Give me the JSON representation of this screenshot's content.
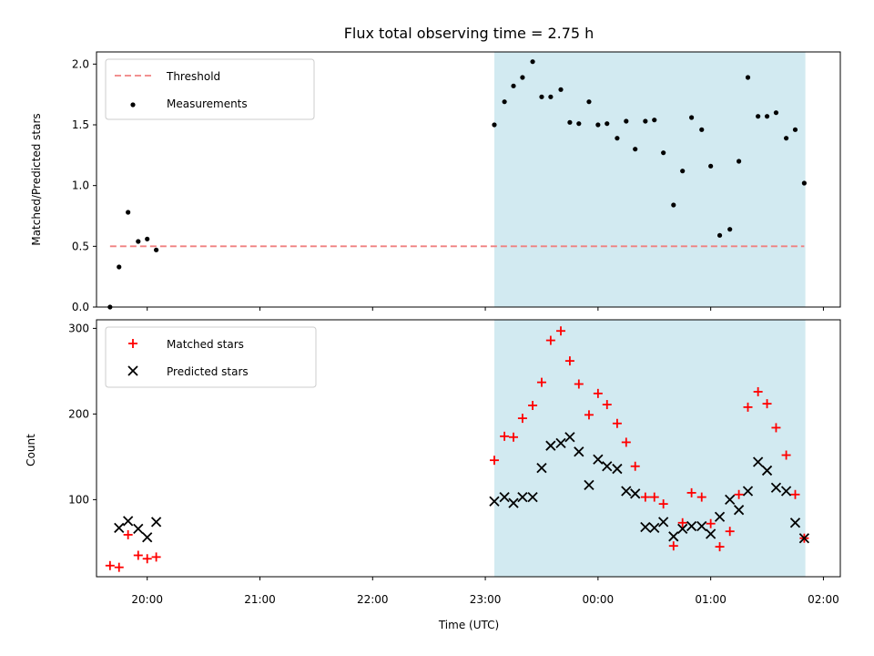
{
  "chart_data": [
    {
      "type": "scatter",
      "title": "Flux total observing time = 2.75 h",
      "xlabel": "",
      "ylabel": "Matched/Predicted stars",
      "ylim": [
        0,
        2.1
      ],
      "yticks": [
        "0.0",
        "0.5",
        "1.0",
        "1.5",
        "2.0"
      ],
      "xlim_hours": [
        19.55,
        26.15
      ],
      "xticks": [
        "20:00",
        "21:00",
        "22:00",
        "23:00",
        "00:00",
        "01:00",
        "02:00"
      ],
      "shaded_span_hours": [
        23.08,
        25.84
      ],
      "shade_color": "#add8e6",
      "legend_position": "upper left",
      "threshold": {
        "name": "Threshold",
        "value": 0.5,
        "x_range_hours": [
          19.67,
          25.83
        ],
        "color": "#f08080"
      },
      "series": [
        {
          "name": "Measurements",
          "color": "#000000",
          "x_hours": [
            19.67,
            19.75,
            19.83,
            19.92,
            20.0,
            20.08,
            23.08,
            23.17,
            23.25,
            23.33,
            23.42,
            23.5,
            23.58,
            23.67,
            23.75,
            23.83,
            23.92,
            24.0,
            24.08,
            24.17,
            24.25,
            24.33,
            24.42,
            24.5,
            24.58,
            24.67,
            24.75,
            24.83,
            24.92,
            25.0,
            25.08,
            25.17,
            25.25,
            25.33,
            25.42,
            25.5,
            25.58,
            25.67,
            25.75,
            25.83
          ],
          "y": [
            0.0,
            0.33,
            0.78,
            0.54,
            0.56,
            0.47,
            1.5,
            1.69,
            1.82,
            1.89,
            2.02,
            1.73,
            1.73,
            1.79,
            1.52,
            1.51,
            1.69,
            1.5,
            1.51,
            1.39,
            1.53,
            1.3,
            1.53,
            1.54,
            1.27,
            0.84,
            1.12,
            1.56,
            1.46,
            1.16,
            0.59,
            0.64,
            1.2,
            1.89,
            1.57,
            1.57,
            1.6,
            1.39,
            1.46,
            1.02
          ]
        }
      ]
    },
    {
      "type": "scatter",
      "title": "",
      "xlabel": "Time (UTC)",
      "ylabel": "Count",
      "ylim": [
        10,
        310
      ],
      "yticks": [
        "100",
        "200",
        "300"
      ],
      "xlim_hours": [
        19.55,
        26.15
      ],
      "xticks": [
        "20:00",
        "21:00",
        "22:00",
        "23:00",
        "00:00",
        "01:00",
        "02:00"
      ],
      "shaded_span_hours": [
        23.08,
        25.84
      ],
      "shade_color": "#add8e6",
      "legend_position": "upper left",
      "series": [
        {
          "name": "Matched stars",
          "marker": "plus",
          "color": "#ff0000",
          "x_hours": [
            19.67,
            19.75,
            19.83,
            19.92,
            20.0,
            20.08,
            23.08,
            23.17,
            23.25,
            23.33,
            23.42,
            23.5,
            23.58,
            23.67,
            23.75,
            23.83,
            23.92,
            24.0,
            24.08,
            24.17,
            24.25,
            24.33,
            24.42,
            24.5,
            24.58,
            24.67,
            24.75,
            24.83,
            24.92,
            25.0,
            25.08,
            25.17,
            25.25,
            25.33,
            25.42,
            25.5,
            25.58,
            25.67,
            25.75,
            25.83
          ],
          "y": [
            23,
            21,
            59,
            35,
            31,
            33,
            146,
            174,
            173,
            195,
            210,
            237,
            286,
            297,
            262,
            235,
            199,
            224,
            211,
            189,
            167,
            139,
            103,
            103,
            95,
            46,
            73,
            108,
            103,
            72,
            45,
            63,
            106,
            208,
            226,
            212,
            184,
            152,
            106,
            55
          ]
        },
        {
          "name": "Predicted stars",
          "marker": "x",
          "color": "#000000",
          "x_hours": [
            19.67,
            19.75,
            19.83,
            19.92,
            20.0,
            20.08,
            23.08,
            23.17,
            23.25,
            23.33,
            23.42,
            23.5,
            23.58,
            23.67,
            23.75,
            23.83,
            23.92,
            24.0,
            24.08,
            24.17,
            24.25,
            24.33,
            24.42,
            24.5,
            24.58,
            24.67,
            24.75,
            24.83,
            24.92,
            25.0,
            25.08,
            25.17,
            25.25,
            25.33,
            25.42,
            25.5,
            25.58,
            25.67,
            25.75,
            25.83
          ],
          "y": [
            null,
            67,
            75,
            66,
            56,
            74,
            98,
            103,
            96,
            103,
            103,
            137,
            163,
            166,
            173,
            156,
            117,
            147,
            139,
            136,
            110,
            107,
            68,
            67,
            74,
            57,
            66,
            69,
            69,
            60,
            80,
            100,
            88,
            110,
            144,
            134,
            114,
            110,
            73,
            55
          ]
        }
      ]
    }
  ]
}
